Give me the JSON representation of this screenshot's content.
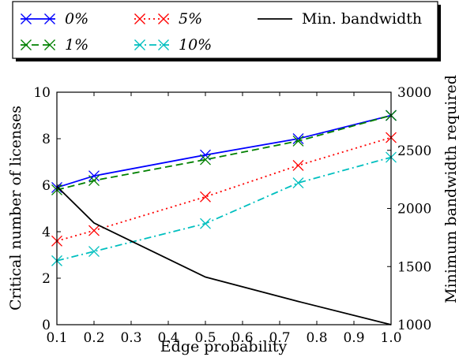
{
  "chart_data": {
    "type": "line",
    "title": "",
    "xlabel": "Edge probability",
    "ylabel": "Critical number of licenses",
    "y2label": "Minimum bandwidth required",
    "x": [
      0.1,
      0.2,
      0.5,
      0.75,
      1.0
    ],
    "xlim": [
      0.1,
      1.0
    ],
    "ylim": [
      0,
      10
    ],
    "y2lim": [
      1000,
      3000
    ],
    "xticks": [
      "0.1",
      "0.2",
      "0.3",
      "0.4",
      "0.5",
      "0.6",
      "0.7",
      "0.8",
      "0.9",
      "1.0"
    ],
    "yticks": [
      "0",
      "2",
      "4",
      "6",
      "8",
      "10"
    ],
    "y2ticks": [
      "1000",
      "1500",
      "2000",
      "2500",
      "3000"
    ],
    "grid": false,
    "legend_position": "top, outside the plot, 3 columns",
    "series": [
      {
        "name": "0%",
        "axis": "left",
        "color": "#0000ff",
        "dash": "solid",
        "marker": "x",
        "values": [
          5.9,
          6.4,
          7.3,
          8.0,
          9.0
        ]
      },
      {
        "name": "1%",
        "axis": "left",
        "color": "#008000",
        "dash": "dashed",
        "marker": "x",
        "values": [
          5.8,
          6.2,
          7.1,
          7.9,
          9.0
        ]
      },
      {
        "name": "5%",
        "axis": "left",
        "color": "#ff0000",
        "dash": "dotted",
        "marker": "x",
        "values": [
          3.6,
          4.05,
          5.5,
          6.85,
          8.05
        ]
      },
      {
        "name": "10%",
        "axis": "left",
        "color": "#00bfbf",
        "dash": "dash-dot",
        "marker": "x",
        "values": [
          2.75,
          3.15,
          4.35,
          6.1,
          7.2
        ]
      },
      {
        "name": "Min. bandwidth",
        "axis": "right",
        "color": "#000000",
        "dash": "solid",
        "marker": "none",
        "values": [
          2190,
          1875,
          1410,
          1200,
          1000
        ]
      }
    ]
  }
}
